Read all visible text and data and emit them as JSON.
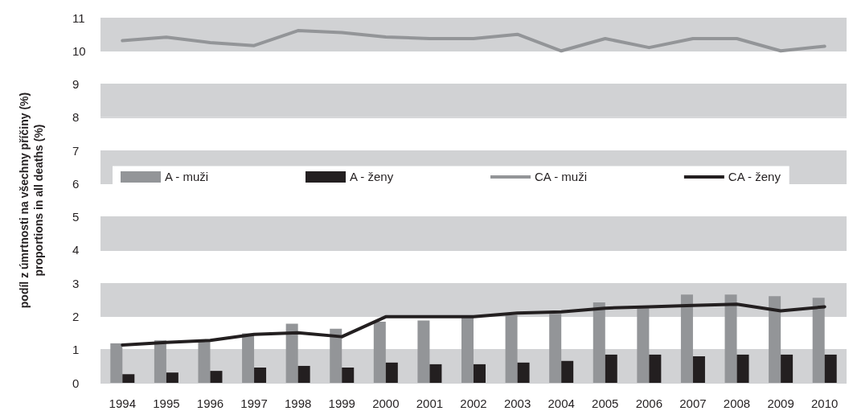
{
  "chart_data": {
    "type": "bar",
    "ylabel": "podíl z úmrtnosti na všechny příčiny (%)\nproportions in all deaths (%)",
    "categories": [
      "1994",
      "1995",
      "1996",
      "1997",
      "1998",
      "1999",
      "2000",
      "2001",
      "2002",
      "2003",
      "2004",
      "2005",
      "2006",
      "2007",
      "2008",
      "2009",
      "2010"
    ],
    "series": [
      {
        "name": "A - muži",
        "color": "#939598",
        "values": [
          1.19,
          1.28,
          1.25,
          1.49,
          1.78,
          1.63,
          1.84,
          1.88,
          1.96,
          2.04,
          2.08,
          2.42,
          2.25,
          2.66,
          2.66,
          2.61,
          2.56
        ]
      },
      {
        "name": "A - ženy",
        "color": "#231f20",
        "values": [
          0.26,
          0.31,
          0.36,
          0.46,
          0.51,
          0.46,
          0.61,
          0.56,
          0.56,
          0.61,
          0.66,
          0.85,
          0.85,
          0.8,
          0.85,
          0.85,
          0.85
        ]
      },
      {
        "name": "CA - muži",
        "type": "line",
        "color": "#939598",
        "values": [
          10.31,
          10.41,
          10.25,
          10.16,
          10.61,
          10.55,
          10.42,
          10.37,
          10.37,
          10.5,
          10.0,
          10.37,
          10.1,
          10.37,
          10.37,
          10.0,
          10.14
        ]
      },
      {
        "name": "CA - ženy",
        "type": "line",
        "color": "#231f20",
        "values": [
          1.14,
          1.22,
          1.28,
          1.46,
          1.51,
          1.39,
          1.99,
          1.99,
          1.99,
          2.1,
          2.14,
          2.25,
          2.29,
          2.33,
          2.37,
          2.17,
          2.29
        ]
      }
    ],
    "ylim": [
      0,
      11
    ],
    "yticks": [
      0,
      1,
      2,
      3,
      4,
      5,
      6,
      7,
      8,
      9,
      10,
      11
    ],
    "grid": "y",
    "legend": "center",
    "marker": "none",
    "line_style": "solid"
  }
}
